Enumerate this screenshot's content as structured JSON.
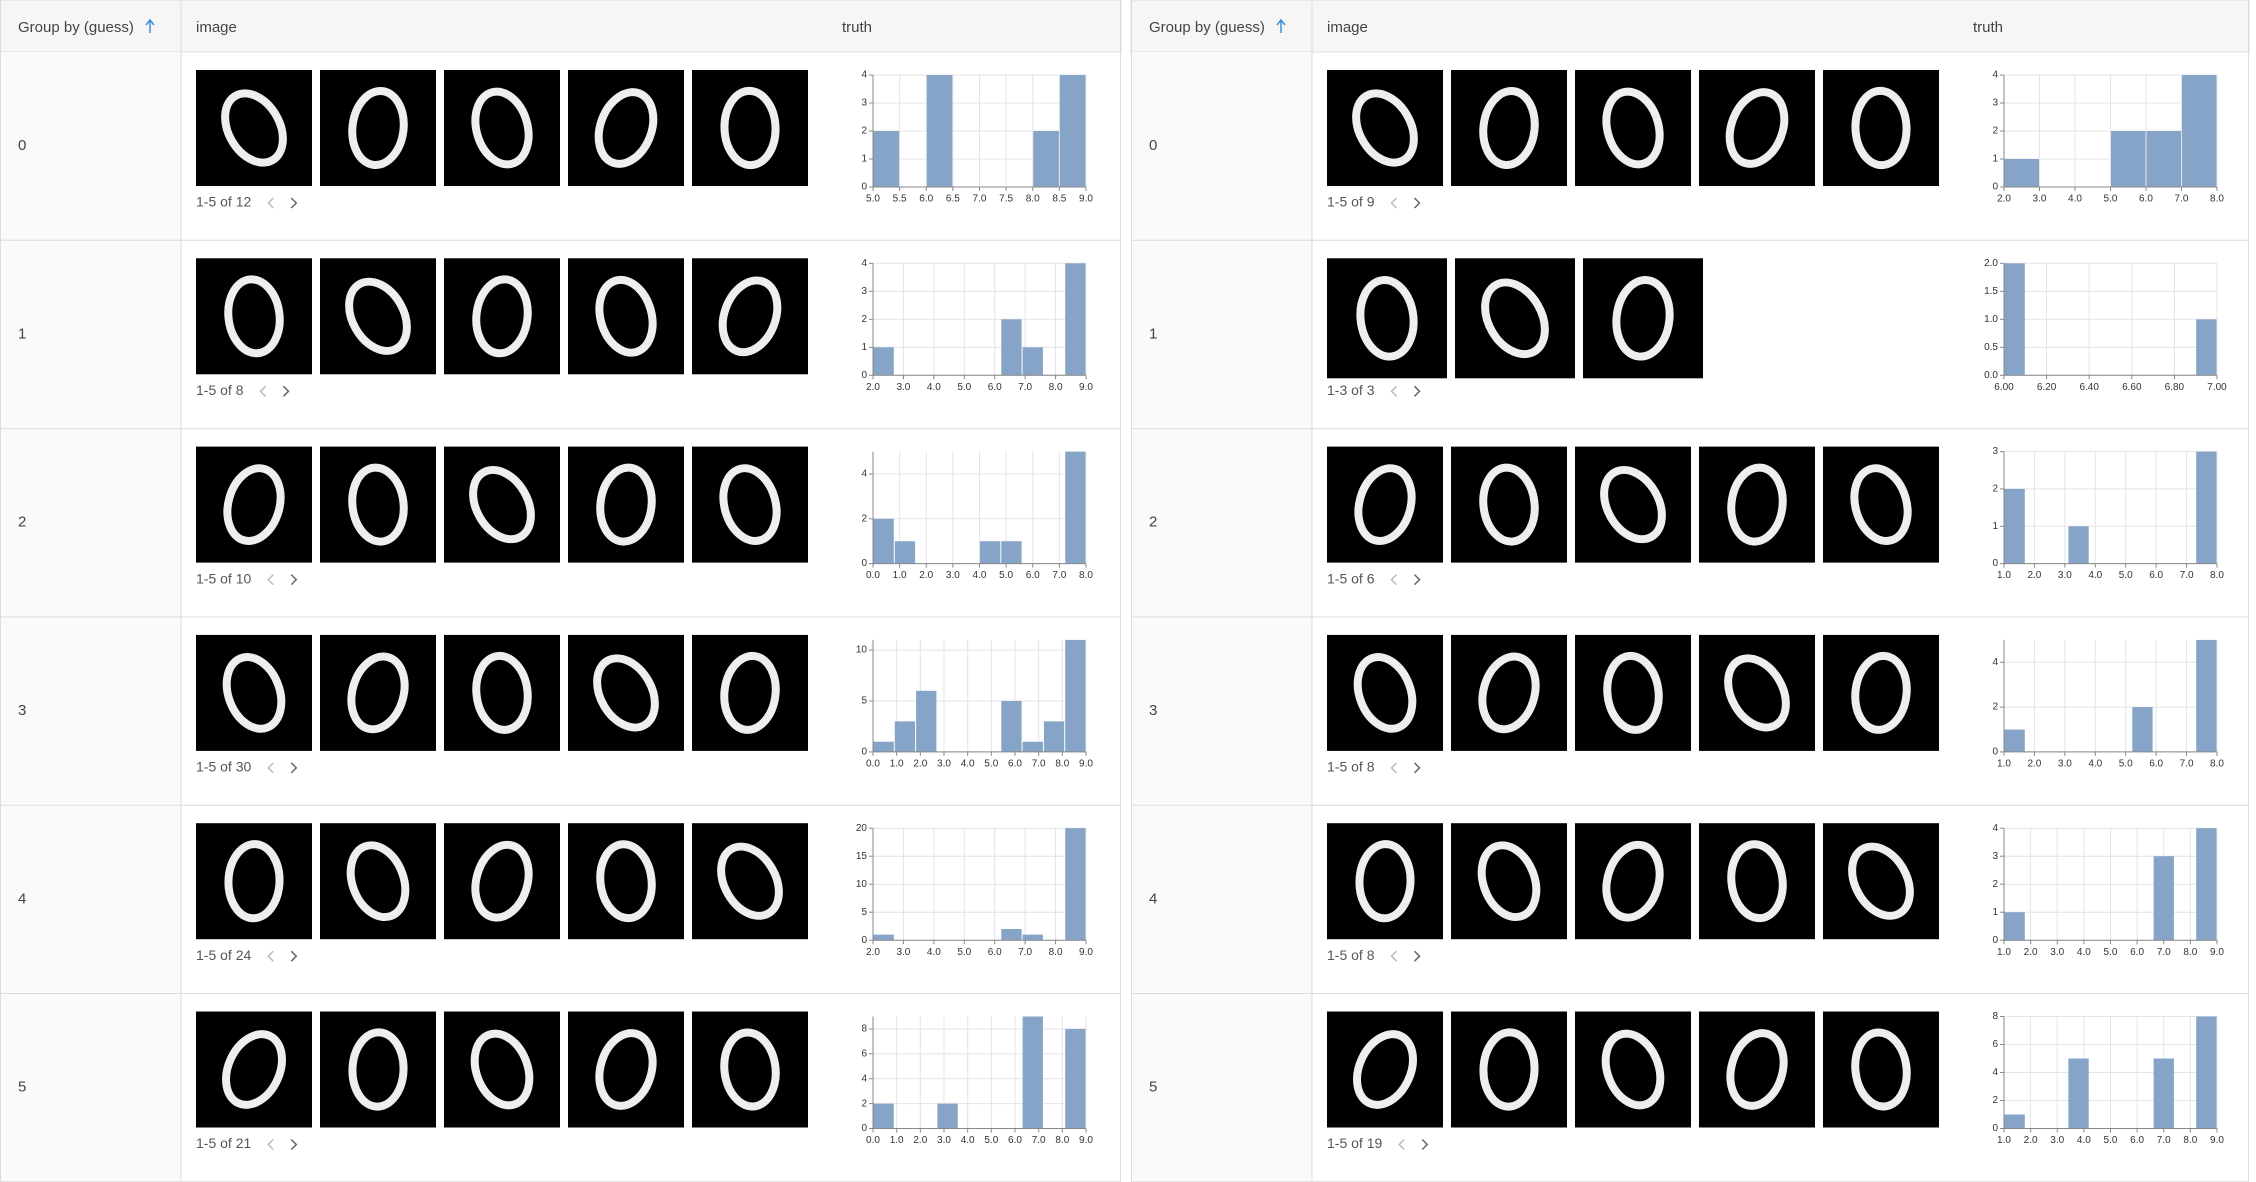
{
  "panels": [
    {
      "header": {
        "group": "Group by (guess)",
        "image": "image",
        "truth": "truth"
      },
      "rows": [
        {
          "group": "0",
          "pager": "1-5 of 12",
          "hist": {
            "bins": [
              5,
              5.5,
              6,
              6.5,
              7,
              7.5,
              8,
              8.5,
              9
            ],
            "counts": [
              2,
              0,
              4,
              0,
              0,
              0,
              2,
              4
            ],
            "xlim": [
              5,
              9
            ],
            "xticks": [
              {
                "value": 5,
                "label": "5.0"
              },
              5.5,
              {
                "value": 6,
                "label": "6.0"
              },
              6.5,
              {
                "value": 7,
                "label": "7.0"
              },
              7.5,
              {
                "value": 8,
                "label": "8.0"
              },
              8.5,
              {
                "value": 9,
                "label": "9.0"
              }
            ],
            "ylim": [
              0,
              4
            ],
            "yticks": [
              0,
              1,
              2,
              3,
              4
            ]
          }
        },
        {
          "group": "1",
          "pager": "1-5 of 8",
          "hist": {
            "bins": [
              2,
              2.7,
              3.4,
              4.1,
              4.8,
              5.5,
              6.2,
              6.9,
              7.6,
              8.3,
              9
            ],
            "counts": [
              1,
              0,
              0,
              0,
              0,
              0,
              2,
              1,
              0,
              4
            ],
            "xlim": [
              2,
              9
            ],
            "xticks": [
              {
                "value": 2,
                "label": "2.0"
              },
              {
                "value": 3,
                "label": "3.0"
              },
              {
                "value": 4,
                "label": "4.0"
              },
              {
                "value": 5,
                "label": "5.0"
              },
              {
                "value": 6,
                "label": "6.0"
              },
              {
                "value": 7,
                "label": "7.0"
              },
              {
                "value": 8,
                "label": "8.0"
              },
              {
                "value": 9,
                "label": "9.0"
              }
            ],
            "ylim": [
              0,
              4
            ],
            "yticks": [
              0,
              1,
              2,
              3,
              4
            ]
          }
        },
        {
          "group": "2",
          "pager": "1-5 of 10",
          "hist": {
            "bins": [
              0,
              0.8,
              1.6,
              2.4,
              3.2,
              4,
              4.8,
              5.6,
              6.4,
              7.2,
              8
            ],
            "counts": [
              2,
              1,
              0,
              0,
              0,
              1,
              1,
              0,
              0,
              5
            ],
            "xlim": [
              0,
              8
            ],
            "xticks": [
              {
                "value": 0,
                "label": "0.0"
              },
              {
                "value": 1,
                "label": "1.0"
              },
              {
                "value": 2,
                "label": "2.0"
              },
              {
                "value": 3,
                "label": "3.0"
              },
              {
                "value": 4,
                "label": "4.0"
              },
              {
                "value": 5,
                "label": "5.0"
              },
              {
                "value": 6,
                "label": "6.0"
              },
              {
                "value": 7,
                "label": "7.0"
              },
              {
                "value": 8,
                "label": "8.0"
              }
            ],
            "ylim": [
              0,
              5
            ],
            "yticks": [
              0,
              2,
              4
            ]
          }
        },
        {
          "group": "3",
          "pager": "1-5 of 30",
          "hist": {
            "bins": [
              0,
              0.9,
              1.8,
              2.7,
              3.6,
              4.5,
              5.4,
              6.3,
              7.2,
              8.1,
              9
            ],
            "counts": [
              1,
              3,
              6,
              0,
              0,
              0,
              5,
              1,
              3,
              11
            ],
            "xlim": [
              0,
              9
            ],
            "xticks": [
              {
                "value": 0,
                "label": "0.0"
              },
              {
                "value": 1,
                "label": "1.0"
              },
              {
                "value": 2,
                "label": "2.0"
              },
              {
                "value": 3,
                "label": "3.0"
              },
              {
                "value": 4,
                "label": "4.0"
              },
              {
                "value": 5,
                "label": "5.0"
              },
              {
                "value": 6,
                "label": "6.0"
              },
              {
                "value": 7,
                "label": "7.0"
              },
              {
                "value": 8,
                "label": "8.0"
              },
              {
                "value": 9,
                "label": "9.0"
              }
            ],
            "ylim": [
              0,
              11
            ],
            "yticks": [
              0,
              5,
              10
            ]
          }
        },
        {
          "group": "4",
          "pager": "1-5 of 24",
          "hist": {
            "bins": [
              2,
              2.7,
              3.4,
              4.1,
              4.8,
              5.5,
              6.2,
              6.9,
              7.6,
              8.3,
              9
            ],
            "counts": [
              1,
              0,
              0,
              0,
              0,
              0,
              2,
              1,
              0,
              20
            ],
            "xlim": [
              2,
              9
            ],
            "xticks": [
              {
                "value": 2,
                "label": "2.0"
              },
              {
                "value": 3,
                "label": "3.0"
              },
              {
                "value": 4,
                "label": "4.0"
              },
              {
                "value": 5,
                "label": "5.0"
              },
              {
                "value": 6,
                "label": "6.0"
              },
              {
                "value": 7,
                "label": "7.0"
              },
              {
                "value": 8,
                "label": "8.0"
              },
              {
                "value": 9,
                "label": "9.0"
              }
            ],
            "ylim": [
              0,
              20
            ],
            "yticks": [
              0,
              5,
              10,
              15,
              20
            ]
          }
        },
        {
          "group": "5",
          "pager": "1-5 of 21",
          "hist": {
            "bins": [
              0,
              0.9,
              1.8,
              2.7,
              3.6,
              4.5,
              5.4,
              6.3,
              7.2,
              8.1,
              9
            ],
            "counts": [
              2,
              0,
              0,
              2,
              0,
              0,
              0,
              9,
              0,
              8
            ],
            "xlim": [
              0,
              9
            ],
            "xticks": [
              {
                "value": 0,
                "label": "0.0"
              },
              {
                "value": 1,
                "label": "1.0"
              },
              {
                "value": 2,
                "label": "2.0"
              },
              {
                "value": 3,
                "label": "3.0"
              },
              {
                "value": 4,
                "label": "4.0"
              },
              {
                "value": 5,
                "label": "5.0"
              },
              {
                "value": 6,
                "label": "6.0"
              },
              {
                "value": 7,
                "label": "7.0"
              },
              {
                "value": 8,
                "label": "8.0"
              },
              {
                "value": 9,
                "label": "9.0"
              }
            ],
            "ylim": [
              0,
              9
            ],
            "yticks": [
              0,
              2,
              4,
              6,
              8
            ]
          }
        }
      ]
    },
    {
      "header": {
        "group": "Group by (guess)",
        "image": "image",
        "truth": "truth"
      },
      "rows": [
        {
          "group": "0",
          "pager": "1-5 of 9",
          "hist": {
            "bins": [
              2,
              3,
              4,
              5,
              6,
              7,
              8
            ],
            "counts": [
              1,
              0,
              0,
              2,
              2,
              4
            ],
            "xlim": [
              2,
              8
            ],
            "xticks": [
              {
                "value": 2,
                "label": "2.0"
              },
              {
                "value": 3,
                "label": "3.0"
              },
              {
                "value": 4,
                "label": "4.0"
              },
              {
                "value": 5,
                "label": "5.0"
              },
              {
                "value": 6,
                "label": "6.0"
              },
              {
                "value": 7,
                "label": "7.0"
              },
              {
                "value": 8,
                "label": "8.0"
              }
            ],
            "ylim": [
              0,
              4
            ],
            "yticks": [
              0,
              1,
              2,
              3,
              4
            ]
          }
        },
        {
          "group": "1",
          "pager": "1-3 of 3",
          "hist": {
            "bins": [
              6,
              6.1,
              6.2,
              6.3,
              6.4,
              6.5,
              6.6,
              6.7,
              6.8,
              6.9,
              7
            ],
            "counts": [
              2,
              0,
              0,
              0,
              0,
              0,
              0,
              0,
              0,
              1
            ],
            "xlim": [
              6,
              7
            ],
            "xticks": [
              {
                "value": 6,
                "label": "6.00"
              },
              {
                "value": 6.2,
                "label": "6.20"
              },
              {
                "value": 6.4,
                "label": "6.40"
              },
              {
                "value": 6.6,
                "label": "6.60"
              },
              {
                "value": 6.8,
                "label": "6.80"
              },
              {
                "value": 7,
                "label": "7.00"
              }
            ],
            "ylim": [
              0,
              2
            ],
            "yticks": [
              {
                "value": 0,
                "label": "0.0"
              },
              0.5,
              {
                "value": 1,
                "label": "1.0"
              },
              1.5,
              {
                "value": 2,
                "label": "2.0"
              }
            ]
          }
        },
        {
          "group": "2",
          "pager": "1-5 of 6",
          "hist": {
            "bins": [
              1,
              1.7,
              2.4,
              3.1,
              3.8,
              4.5,
              5.2,
              5.9,
              6.6,
              7.3,
              8
            ],
            "counts": [
              2,
              0,
              0,
              1,
              0,
              0,
              0,
              0,
              0,
              3
            ],
            "xlim": [
              1,
              8
            ],
            "xticks": [
              {
                "value": 1,
                "label": "1.0"
              },
              {
                "value": 2,
                "label": "2.0"
              },
              {
                "value": 3,
                "label": "3.0"
              },
              {
                "value": 4,
                "label": "4.0"
              },
              {
                "value": 5,
                "label": "5.0"
              },
              {
                "value": 6,
                "label": "6.0"
              },
              {
                "value": 7,
                "label": "7.0"
              },
              {
                "value": 8,
                "label": "8.0"
              }
            ],
            "ylim": [
              0,
              3
            ],
            "yticks": [
              0,
              1,
              2,
              3
            ]
          }
        },
        {
          "group": "3",
          "pager": "1-5 of 8",
          "hist": {
            "bins": [
              1,
              1.7,
              2.4,
              3.1,
              3.8,
              4.5,
              5.2,
              5.9,
              6.6,
              7.3,
              8
            ],
            "counts": [
              1,
              0,
              0,
              0,
              0,
              0,
              2,
              0,
              0,
              5
            ],
            "xlim": [
              1,
              8
            ],
            "xticks": [
              {
                "value": 1,
                "label": "1.0"
              },
              {
                "value": 2,
                "label": "2.0"
              },
              {
                "value": 3,
                "label": "3.0"
              },
              {
                "value": 4,
                "label": "4.0"
              },
              {
                "value": 5,
                "label": "5.0"
              },
              {
                "value": 6,
                "label": "6.0"
              },
              {
                "value": 7,
                "label": "7.0"
              },
              {
                "value": 8,
                "label": "8.0"
              }
            ],
            "ylim": [
              0,
              5
            ],
            "yticks": [
              0,
              2,
              4
            ]
          }
        },
        {
          "group": "4",
          "pager": "1-5 of 8",
          "hist": {
            "bins": [
              1,
              1.8,
              2.6,
              3.4,
              4.2,
              5,
              5.8,
              6.6,
              7.4,
              8.2,
              9
            ],
            "counts": [
              1,
              0,
              0,
              0,
              0,
              0,
              0,
              3,
              0,
              4
            ],
            "xlim": [
              1,
              9
            ],
            "xticks": [
              {
                "value": 1,
                "label": "1.0"
              },
              {
                "value": 2,
                "label": "2.0"
              },
              {
                "value": 3,
                "label": "3.0"
              },
              {
                "value": 4,
                "label": "4.0"
              },
              {
                "value": 5,
                "label": "5.0"
              },
              {
                "value": 6,
                "label": "6.0"
              },
              {
                "value": 7,
                "label": "7.0"
              },
              {
                "value": 8,
                "label": "8.0"
              },
              {
                "value": 9,
                "label": "9.0"
              }
            ],
            "ylim": [
              0,
              4
            ],
            "yticks": [
              0,
              1,
              2,
              3,
              4
            ]
          }
        },
        {
          "group": "5",
          "pager": "1-5 of 19",
          "hist": {
            "bins": [
              1,
              1.8,
              2.6,
              3.4,
              4.2,
              5,
              5.8,
              6.6,
              7.4,
              8.2,
              9
            ],
            "counts": [
              1,
              0,
              0,
              5,
              0,
              0,
              0,
              5,
              0,
              8
            ],
            "xlim": [
              1,
              9
            ],
            "xticks": [
              {
                "value": 1,
                "label": "1.0"
              },
              {
                "value": 2,
                "label": "2.0"
              },
              {
                "value": 3,
                "label": "3.0"
              },
              {
                "value": 4,
                "label": "4.0"
              },
              {
                "value": 5,
                "label": "5.0"
              },
              {
                "value": 6,
                "label": "6.0"
              },
              {
                "value": 7,
                "label": "7.0"
              },
              {
                "value": 8,
                "label": "8.0"
              },
              {
                "value": 9,
                "label": "9.0"
              }
            ],
            "ylim": [
              0,
              8
            ],
            "yticks": [
              0,
              2,
              4,
              6,
              8
            ]
          }
        }
      ]
    }
  ]
}
